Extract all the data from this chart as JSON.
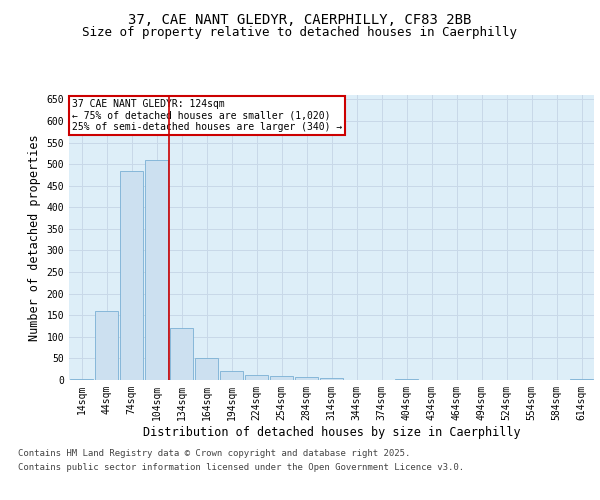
{
  "title_line1": "37, CAE NANT GLEDYR, CAERPHILLY, CF83 2BB",
  "title_line2": "Size of property relative to detached houses in Caerphilly",
  "xlabel": "Distribution of detached houses by size in Caerphilly",
  "ylabel": "Number of detached properties",
  "categories": [
    "14sqm",
    "44sqm",
    "74sqm",
    "104sqm",
    "134sqm",
    "164sqm",
    "194sqm",
    "224sqm",
    "254sqm",
    "284sqm",
    "314sqm",
    "344sqm",
    "374sqm",
    "404sqm",
    "434sqm",
    "464sqm",
    "494sqm",
    "524sqm",
    "554sqm",
    "584sqm",
    "614sqm"
  ],
  "values": [
    3,
    160,
    485,
    510,
    120,
    50,
    20,
    12,
    10,
    7,
    5,
    0,
    0,
    3,
    0,
    0,
    0,
    0,
    0,
    0,
    2
  ],
  "bar_color": "#cce0f0",
  "bar_edge_color": "#7ab0d4",
  "grid_color": "#c8d8e8",
  "bg_color": "#ddeef8",
  "vline_color": "#cc0000",
  "vline_x_index": 3,
  "annotation_text": "37 CAE NANT GLEDYR: 124sqm\n← 75% of detached houses are smaller (1,020)\n25% of semi-detached houses are larger (340) →",
  "annotation_box_color": "#cc0000",
  "ylim": [
    0,
    660
  ],
  "yticks": [
    0,
    50,
    100,
    150,
    200,
    250,
    300,
    350,
    400,
    450,
    500,
    550,
    600,
    650
  ],
  "footer_line1": "Contains HM Land Registry data © Crown copyright and database right 2025.",
  "footer_line2": "Contains public sector information licensed under the Open Government Licence v3.0.",
  "title_fontsize": 10,
  "subtitle_fontsize": 9,
  "tick_fontsize": 7,
  "label_fontsize": 8.5,
  "footer_fontsize": 6.5
}
